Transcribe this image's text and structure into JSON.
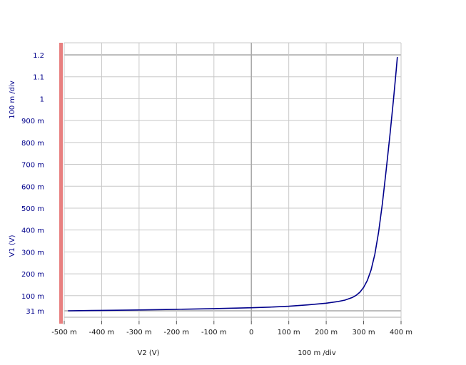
{
  "chart_data": {
    "type": "line",
    "xlabel": "V2 (V)",
    "ylabel": "V1 (V)",
    "x_scale_label": "100 m /div",
    "y_scale_label": "100 m /div",
    "xlim": [
      -0.5,
      0.4
    ],
    "ylim": [
      0.031,
      1.2
    ],
    "x_ticks": [
      {
        "value": -0.5,
        "label": "-500 m"
      },
      {
        "value": -0.4,
        "label": "-400 m"
      },
      {
        "value": -0.3,
        "label": "-300 m"
      },
      {
        "value": -0.2,
        "label": "-200 m"
      },
      {
        "value": -0.1,
        "label": "-100 m"
      },
      {
        "value": 0.0,
        "label": "0"
      },
      {
        "value": 0.1,
        "label": "100 m"
      },
      {
        "value": 0.2,
        "label": "200 m"
      },
      {
        "value": 0.3,
        "label": "300 m"
      },
      {
        "value": 0.4,
        "label": "400 m"
      }
    ],
    "y_ticks": [
      {
        "value": 0.031,
        "label": "31 m"
      },
      {
        "value": 0.1,
        "label": "100 m"
      },
      {
        "value": 0.2,
        "label": "200 m"
      },
      {
        "value": 0.3,
        "label": "300 m"
      },
      {
        "value": 0.4,
        "label": "400 m"
      },
      {
        "value": 0.5,
        "label": "500 m"
      },
      {
        "value": 0.6,
        "label": "600 m"
      },
      {
        "value": 0.7,
        "label": "700 m"
      },
      {
        "value": 0.8,
        "label": "800 m"
      },
      {
        "value": 0.9,
        "label": "900 m"
      },
      {
        "value": 1.0,
        "label": "1"
      },
      {
        "value": 1.1,
        "label": "1.1"
      },
      {
        "value": 1.2,
        "label": "1.2"
      }
    ],
    "grid": true,
    "series": [
      {
        "color": "#00008b",
        "points": [
          [
            -0.49,
            0.031
          ],
          [
            -0.4,
            0.033
          ],
          [
            -0.3,
            0.035
          ],
          [
            -0.2,
            0.038
          ],
          [
            -0.1,
            0.041
          ],
          [
            0.0,
            0.045
          ],
          [
            0.05,
            0.048
          ],
          [
            0.1,
            0.052
          ],
          [
            0.15,
            0.058
          ],
          [
            0.2,
            0.066
          ],
          [
            0.23,
            0.073
          ],
          [
            0.25,
            0.08
          ],
          [
            0.27,
            0.092
          ],
          [
            0.28,
            0.102
          ],
          [
            0.29,
            0.116
          ],
          [
            0.3,
            0.138
          ],
          [
            0.31,
            0.17
          ],
          [
            0.32,
            0.218
          ],
          [
            0.33,
            0.29
          ],
          [
            0.34,
            0.39
          ],
          [
            0.35,
            0.52
          ],
          [
            0.36,
            0.67
          ],
          [
            0.37,
            0.83
          ],
          [
            0.38,
            1.0
          ],
          [
            0.387,
            1.13
          ],
          [
            0.39,
            1.19
          ]
        ]
      }
    ]
  },
  "colors": {
    "axis_left_bar": "#e88080",
    "grid": "#c8c8c8",
    "baseline": "#a8a8a8",
    "trace": "#00008b",
    "y_tick_text": "#00008b"
  }
}
